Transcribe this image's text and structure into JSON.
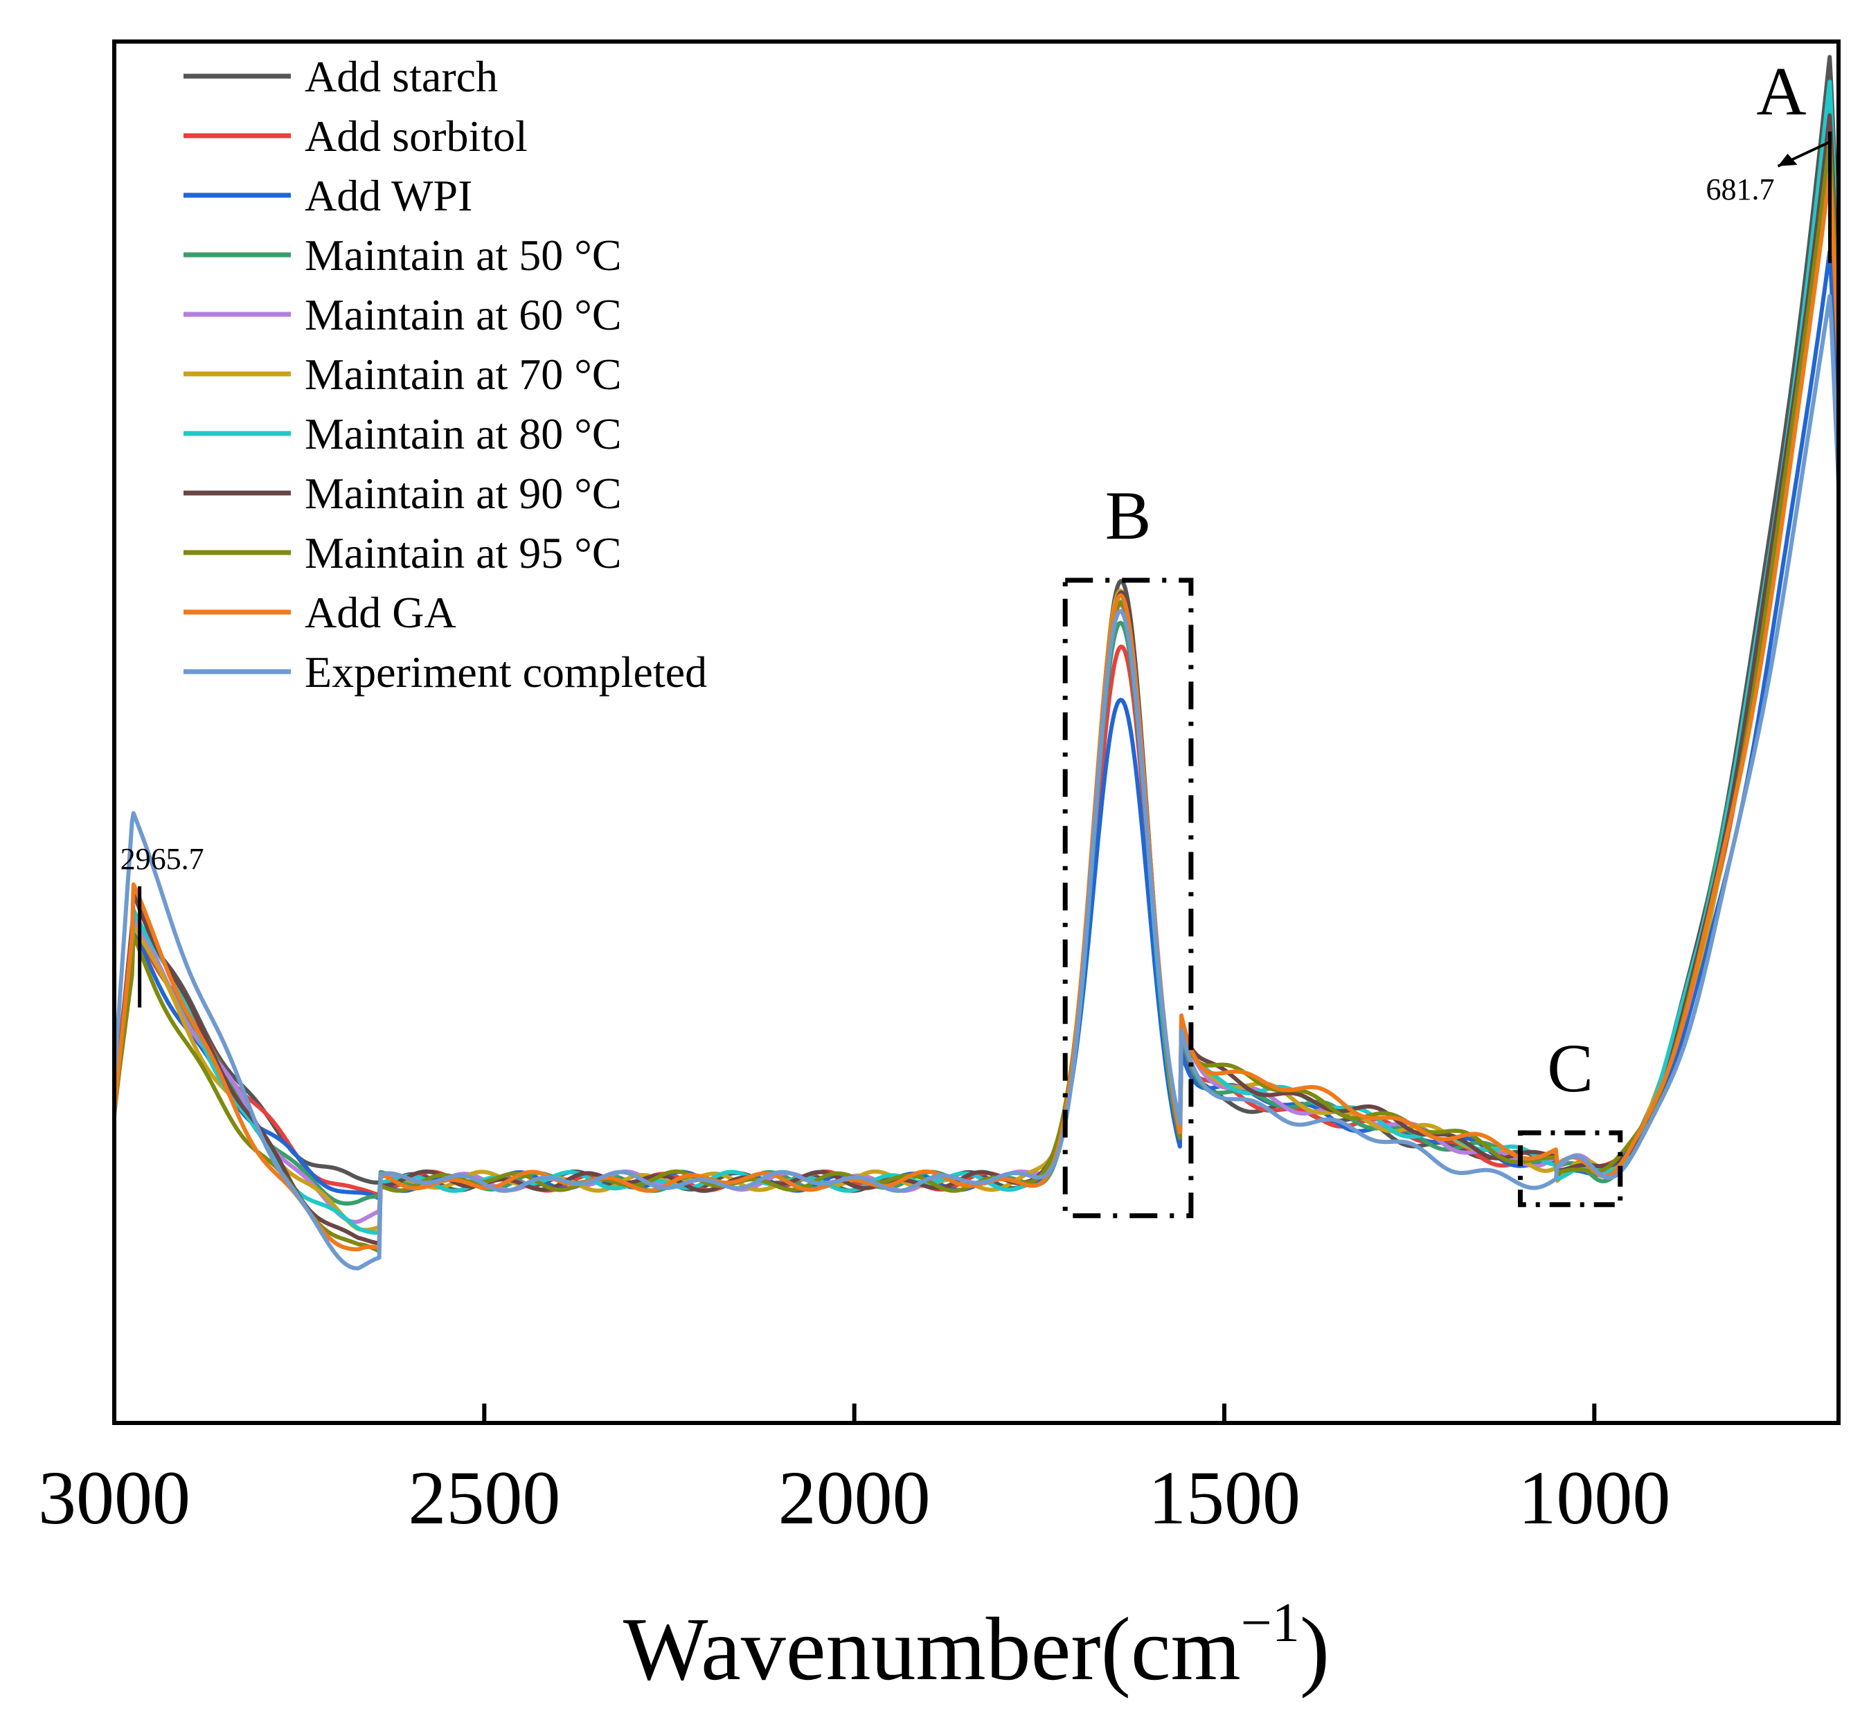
{
  "chart_data": {
    "type": "line",
    "title": "",
    "xlabel": "Wavenumber(cm",
    "xlabel_sup": "−1",
    "xlabel_close": ")",
    "ylabel": "",
    "xlim": [
      3000,
      670
    ],
    "ylim": [
      0,
      1
    ],
    "x_reversed": true,
    "x_ticks": [
      3000,
      2500,
      2000,
      1500,
      1000
    ],
    "x_tick_labels": [
      "3000",
      "2500",
      "2000",
      "1500",
      "1000"
    ],
    "grid": false,
    "legend_position": "top-left",
    "series": [
      {
        "name": "Add starch",
        "color": "#555555",
        "peak_1640": 0.604,
        "peak_681": 0.99,
        "peak_2965": 0.39
      },
      {
        "name": "Add sorbitol",
        "color": "#e8403e",
        "peak_1640": 0.565,
        "peak_681": 0.92,
        "peak_2965": 0.38
      },
      {
        "name": "Add  WPI",
        "color": "#2166d4",
        "peak_1640": 0.527,
        "peak_681": 0.85,
        "peak_2965": 0.36
      },
      {
        "name": "Maintain at 50 °C",
        "color": "#3a9e6a",
        "peak_1640": 0.58,
        "peak_681": 0.96,
        "peak_2965": 0.37
      },
      {
        "name": "Maintain at 60 °C",
        "color": "#b57ee0",
        "peak_1640": 0.595,
        "peak_681": 0.94,
        "peak_2965": 0.37
      },
      {
        "name": "Maintain at 70 °C",
        "color": "#c9a21a",
        "peak_1640": 0.6,
        "peak_681": 0.93,
        "peak_2965": 0.36
      },
      {
        "name": "Maintain at 80 °C",
        "color": "#1fc9c9",
        "peak_1640": 0.588,
        "peak_681": 0.97,
        "peak_2965": 0.37
      },
      {
        "name": "Maintain at 90 °C",
        "color": "#6b4545",
        "peak_1640": 0.602,
        "peak_681": 0.95,
        "peak_2965": 0.38
      },
      {
        "name": "Maintain at 95 °C",
        "color": "#7f8a10",
        "peak_1640": 0.598,
        "peak_681": 0.93,
        "peak_2965": 0.34
      },
      {
        "name": "Add GA",
        "color": "#f07a1a",
        "peak_1640": 0.6,
        "peak_681": 0.91,
        "peak_2965": 0.37
      },
      {
        "name": "Experiment completed",
        "color": "#6e9ad0",
        "peak_1640": 0.59,
        "peak_681": 0.82,
        "peak_2965": 0.42
      }
    ],
    "annotations": [
      {
        "label": "A",
        "kind": "region-label",
        "x": 681.7
      },
      {
        "label": "681.7",
        "kind": "peak-value",
        "x": 681.7
      },
      {
        "label": "2965.7",
        "kind": "peak-value",
        "x": 2965.7
      },
      {
        "label": "B",
        "kind": "region-box",
        "x_from": 1715,
        "x_to": 1545
      },
      {
        "label": "C",
        "kind": "region-box",
        "x_from": 1100,
        "x_to": 965
      }
    ]
  }
}
